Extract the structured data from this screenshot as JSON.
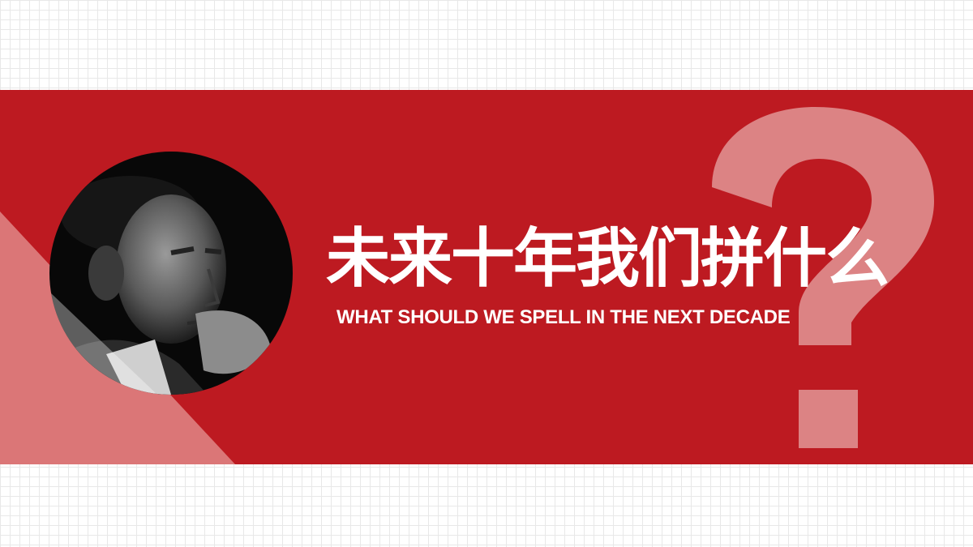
{
  "slide": {
    "title": "未来十年我们拼什么",
    "subtitle": "WHAT SHOULD WE SPELL IN THE NEXT DECADE",
    "decoration": "?",
    "portrait_icon": "portrait-photo-icon"
  },
  "colors": {
    "band": "#bd1a21",
    "triangle": "#db7677",
    "question_mark": "#dc8384",
    "text": "#ffffff",
    "grid": "#e8e8e8"
  }
}
